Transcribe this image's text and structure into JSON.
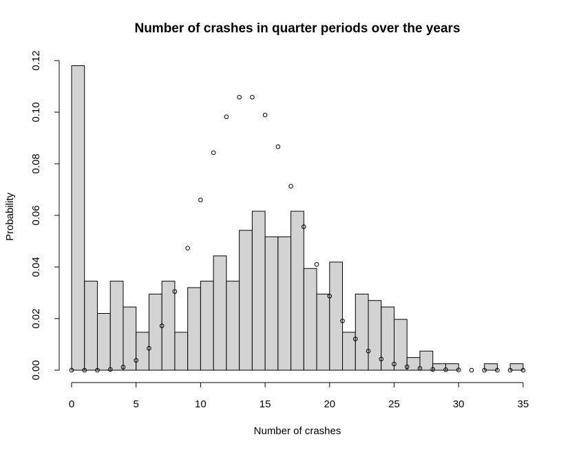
{
  "chart_data": {
    "type": "bar",
    "title": "Number of crashes in quarter periods over the years",
    "xlabel": "Number of crashes",
    "ylabel": "Probability",
    "xlim": [
      0,
      35
    ],
    "ylim": [
      0,
      0.12
    ],
    "grid": false,
    "x_ticks": [
      0,
      5,
      10,
      15,
      20,
      25,
      30,
      35
    ],
    "y_ticks": [
      "0.00",
      "0.02",
      "0.04",
      "0.06",
      "0.08",
      "0.10",
      "0.12"
    ],
    "histogram": {
      "bin_width": 1,
      "bins": [
        {
          "from": 0,
          "to": 1,
          "value": 0.118
        },
        {
          "from": 1,
          "to": 2,
          "value": 0.0345
        },
        {
          "from": 2,
          "to": 3,
          "value": 0.022
        },
        {
          "from": 3,
          "to": 4,
          "value": 0.0345
        },
        {
          "from": 4,
          "to": 5,
          "value": 0.0245
        },
        {
          "from": 5,
          "to": 6,
          "value": 0.0147
        },
        {
          "from": 6,
          "to": 7,
          "value": 0.0295
        },
        {
          "from": 7,
          "to": 8,
          "value": 0.0345
        },
        {
          "from": 8,
          "to": 9,
          "value": 0.0147
        },
        {
          "from": 9,
          "to": 10,
          "value": 0.032
        },
        {
          "from": 10,
          "to": 11,
          "value": 0.0345
        },
        {
          "from": 11,
          "to": 12,
          "value": 0.0443
        },
        {
          "from": 12,
          "to": 13,
          "value": 0.0345
        },
        {
          "from": 13,
          "to": 14,
          "value": 0.0542
        },
        {
          "from": 14,
          "to": 15,
          "value": 0.0616
        },
        {
          "from": 15,
          "to": 16,
          "value": 0.0517
        },
        {
          "from": 16,
          "to": 17,
          "value": 0.0517
        },
        {
          "from": 17,
          "to": 18,
          "value": 0.0616
        },
        {
          "from": 18,
          "to": 19,
          "value": 0.0394
        },
        {
          "from": 19,
          "to": 20,
          "value": 0.0295
        },
        {
          "from": 20,
          "to": 21,
          "value": 0.0419
        },
        {
          "from": 21,
          "to": 22,
          "value": 0.0147
        },
        {
          "from": 22,
          "to": 23,
          "value": 0.0295
        },
        {
          "from": 23,
          "to": 24,
          "value": 0.027
        },
        {
          "from": 24,
          "to": 25,
          "value": 0.0245
        },
        {
          "from": 25,
          "to": 26,
          "value": 0.0197
        },
        {
          "from": 26,
          "to": 27,
          "value": 0.0049
        },
        {
          "from": 27,
          "to": 28,
          "value": 0.0074
        },
        {
          "from": 28,
          "to": 29,
          "value": 0.0025
        },
        {
          "from": 29,
          "to": 30,
          "value": 0.0025
        },
        {
          "from": 32,
          "to": 33,
          "value": 0.0025
        },
        {
          "from": 34,
          "to": 35,
          "value": 0.0025
        }
      ]
    },
    "points": {
      "x": [
        0,
        1,
        2,
        3,
        4,
        5,
        6,
        7,
        8,
        9,
        10,
        11,
        12,
        13,
        14,
        15,
        16,
        17,
        18,
        19,
        20,
        21,
        22,
        23,
        24,
        25,
        26,
        27,
        28,
        29,
        30,
        31,
        32,
        33,
        34,
        35
      ],
      "y": [
        0,
        0,
        0,
        0.0003,
        0.0012,
        0.0038,
        0.0085,
        0.0172,
        0.0305,
        0.0473,
        0.066,
        0.0843,
        0.0982,
        0.1058,
        0.1058,
        0.0989,
        0.0866,
        0.0713,
        0.0556,
        0.041,
        0.0287,
        0.0191,
        0.0121,
        0.0074,
        0.0043,
        0.0024,
        0.0013,
        0.0007,
        0.0003,
        0.0002,
        0.0001,
        0,
        0,
        0,
        0,
        0
      ]
    }
  }
}
